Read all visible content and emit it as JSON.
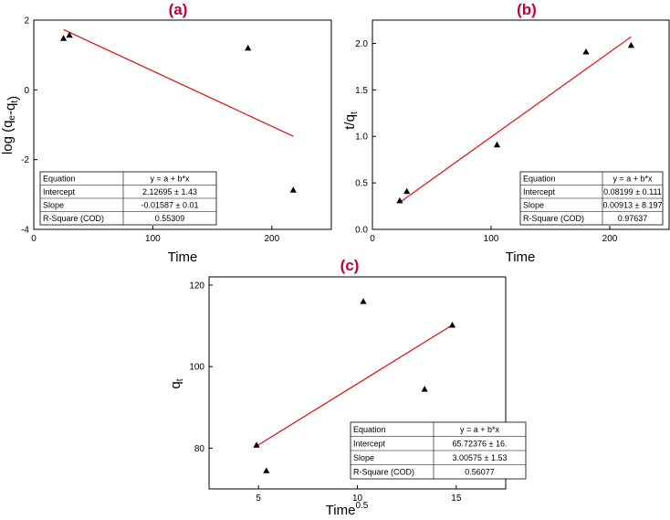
{
  "colors": {
    "title": "#c0003a",
    "fit_line": "#e01010",
    "marker": "#000000",
    "axis": "#000000"
  },
  "chart_data": [
    {
      "type": "scatter",
      "panel_label": "(a)",
      "xlabel": "Time",
      "ylabel": "log (q_e-q_t)",
      "xlim": [
        0,
        250
      ],
      "ylim": [
        -4,
        2
      ],
      "xticks": [
        0,
        100,
        200
      ],
      "yticks": [
        -4,
        -2,
        0,
        2
      ],
      "x_tick_labels": [
        "0",
        "100",
        "200"
      ],
      "y_tick_labels": [
        "-4",
        "-2",
        "0",
        "2"
      ],
      "grid": false,
      "points": [
        {
          "x": 25,
          "y": 1.48
        },
        {
          "x": 30,
          "y": 1.57
        },
        {
          "x": 180,
          "y": 1.2
        },
        {
          "x": 218,
          "y": -2.87
        }
      ],
      "fit_line": {
        "x": [
          25,
          218
        ],
        "y": [
          1.73,
          -1.33
        ]
      },
      "stats_table": [
        [
          "Equation",
          "y = a + b*x"
        ],
        [
          "Intercept",
          "2.12695 ± 1.43"
        ],
        [
          "Slope",
          "-0.01587 ± 0.01"
        ],
        [
          "R-Square (COD)",
          "0.55309"
        ]
      ]
    },
    {
      "type": "scatter",
      "panel_label": "(b)",
      "xlabel": "Time",
      "ylabel": "t/q_t",
      "xlim": [
        0,
        250
      ],
      "ylim": [
        0,
        2.25
      ],
      "xticks": [
        0,
        100,
        200
      ],
      "yticks": [
        0.0,
        0.5,
        1.0,
        1.5,
        2.0
      ],
      "x_tick_labels": [
        "0",
        "100",
        "200"
      ],
      "y_tick_labels": [
        "0.0",
        "0.5",
        "1.0",
        "1.5",
        "2.0"
      ],
      "grid": false,
      "points": [
        {
          "x": 23,
          "y": 0.31
        },
        {
          "x": 29,
          "y": 0.41
        },
        {
          "x": 105,
          "y": 0.91
        },
        {
          "x": 180,
          "y": 1.91
        },
        {
          "x": 218,
          "y": 1.98
        }
      ],
      "fit_line": {
        "x": [
          23,
          218
        ],
        "y": [
          0.29,
          2.07
        ]
      },
      "stats_table": [
        [
          "Equation",
          "y = a + b*x"
        ],
        [
          "Intercept",
          "0.08199 ± 0.111"
        ],
        [
          "Slope",
          "0.00913 ± 8.197"
        ],
        [
          "R-Square (COD)",
          "0.97637"
        ]
      ]
    },
    {
      "type": "scatter",
      "panel_label": "(c)",
      "xlabel": "Time",
      "xlabel_superscript": "0.5",
      "ylabel": "q_t",
      "xlim": [
        2.5,
        17.5
      ],
      "ylim": [
        70,
        122
      ],
      "xticks": [
        5,
        10,
        15
      ],
      "yticks": [
        80,
        100,
        120
      ],
      "x_tick_labels": [
        "5",
        "10",
        "15"
      ],
      "y_tick_labels": [
        "80",
        "100",
        "120"
      ],
      "grid": false,
      "points": [
        {
          "x": 4.9,
          "y": 80.8
        },
        {
          "x": 5.4,
          "y": 74.5
        },
        {
          "x": 10.3,
          "y": 116
        },
        {
          "x": 13.4,
          "y": 94.5
        },
        {
          "x": 14.8,
          "y": 110.2
        }
      ],
      "fit_line": {
        "x": [
          4.9,
          14.8
        ],
        "y": [
          80.5,
          110.2
        ]
      },
      "stats_table": [
        [
          "Equation",
          "y = a + b*x"
        ],
        [
          "Intercept",
          "65.72376 ± 16."
        ],
        [
          "Slope",
          "3.00575 ± 1.53"
        ],
        [
          "R-Square (COD)",
          "0.56077"
        ]
      ]
    }
  ]
}
